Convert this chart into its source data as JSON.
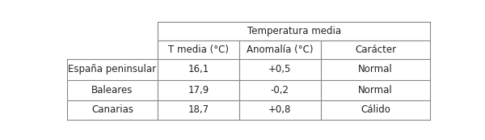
{
  "title_row": "Temperatura media",
  "header_cols": [
    "T media (°C)",
    "Anomalía (°C)",
    "Carácter"
  ],
  "row_labels": [
    "España peninsular",
    "Baleares",
    "Canarias"
  ],
  "data": [
    [
      "16,1",
      "+0,5",
      "Normal"
    ],
    [
      "17,9",
      "-0,2",
      "Normal"
    ],
    [
      "18,7",
      "+0,8",
      "Cálido"
    ]
  ],
  "bg_color": "#ffffff",
  "line_color": "#888888",
  "text_color": "#222222",
  "font_size": 8.5
}
